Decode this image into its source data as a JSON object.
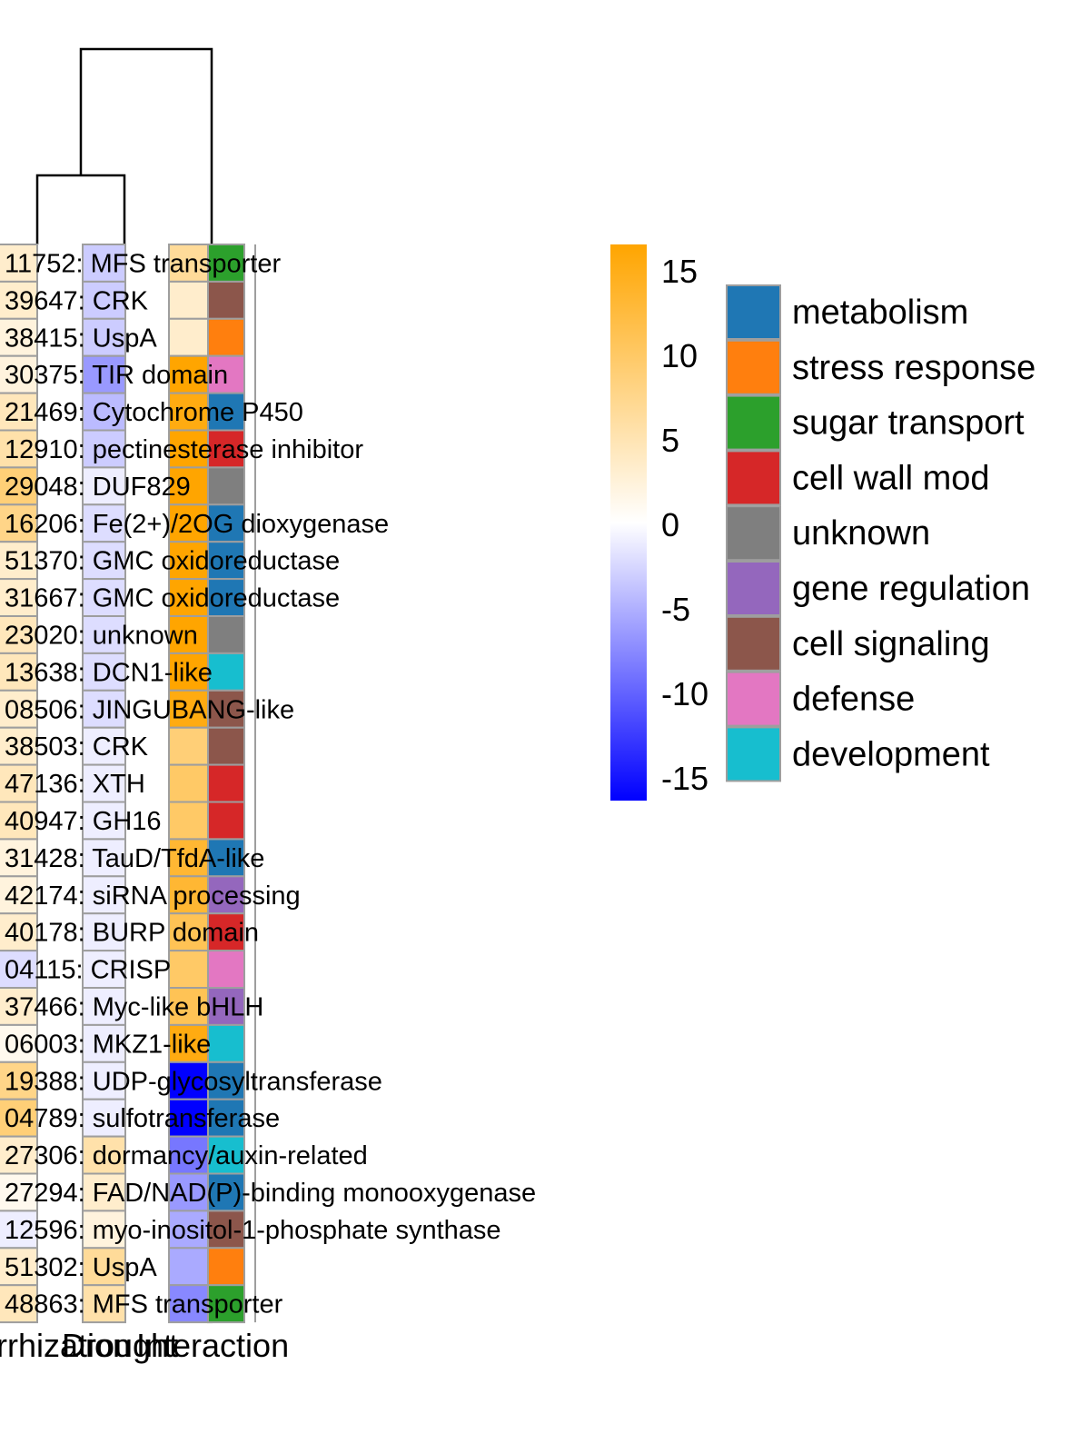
{
  "chart_data": {
    "type": "heatmap",
    "columns": [
      "Mycorrhization",
      "Drought",
      "Interaction"
    ],
    "rows": [
      {
        "id": "11752",
        "desc": ": MFS transporter",
        "values": [
          3,
          -3,
          6
        ],
        "category": "sugar transport"
      },
      {
        "id": "39647",
        "desc": ": CRK",
        "values": [
          3,
          -3,
          3
        ],
        "category": "cell signaling"
      },
      {
        "id": "38415",
        "desc": ": UspA",
        "values": [
          2,
          -3,
          3
        ],
        "category": "stress response"
      },
      {
        "id": "30375",
        "desc": ": TIR domain",
        "values": [
          2,
          -6,
          15
        ],
        "category": "defense"
      },
      {
        "id": "21469",
        "desc": ": Cytochrome P450",
        "values": [
          4,
          -4,
          14
        ],
        "category": "metabolism"
      },
      {
        "id": "12910",
        "desc": ": pectinesterase inhibitor",
        "values": [
          5,
          -3,
          15
        ],
        "category": "cell wall mod"
      },
      {
        "id": "29048",
        "desc": ": DUF829",
        "values": [
          8,
          -1,
          15
        ],
        "category": "unknown"
      },
      {
        "id": "16206",
        "desc": ": Fe(2+)/2OG dioxygenase",
        "values": [
          7,
          -2,
          15
        ],
        "category": "metabolism"
      },
      {
        "id": "51370",
        "desc": ": GMC oxidoreductase",
        "values": [
          3,
          -2,
          15
        ],
        "category": "metabolism"
      },
      {
        "id": "31667",
        "desc": ": GMC oxidoreductase",
        "values": [
          3,
          -2,
          15
        ],
        "category": "metabolism"
      },
      {
        "id": "23020",
        "desc": ": unknown",
        "values": [
          4,
          -2,
          15
        ],
        "category": "unknown"
      },
      {
        "id": "13638",
        "desc": ": DCN1-like",
        "values": [
          4,
          -2,
          15
        ],
        "category": "development"
      },
      {
        "id": "08506",
        "desc": ": JINGUBANG-like",
        "values": [
          3,
          -2,
          14
        ],
        "category": "cell signaling"
      },
      {
        "id": "38503",
        "desc": ": CRK",
        "values": [
          3,
          -1,
          8
        ],
        "category": "cell signaling"
      },
      {
        "id": "47136",
        "desc": ": XTH",
        "values": [
          4,
          -1,
          9
        ],
        "category": "cell wall mod"
      },
      {
        "id": "40947",
        "desc": ": GH16",
        "values": [
          4,
          -1,
          9
        ],
        "category": "cell wall mod"
      },
      {
        "id": "31428",
        "desc": ": TauD/TfdA-like",
        "values": [
          2,
          -1,
          12
        ],
        "category": "metabolism"
      },
      {
        "id": "42174",
        "desc": ": siRNA processing",
        "values": [
          2,
          -1,
          12
        ],
        "category": "gene regulation"
      },
      {
        "id": "40178",
        "desc": ": BURP domain",
        "values": [
          3,
          -1,
          10
        ],
        "category": "cell wall mod"
      },
      {
        "id": "04115",
        "desc": ": CRISP",
        "values": [
          -2,
          -1,
          9
        ],
        "category": "defense"
      },
      {
        "id": "37466",
        "desc": ": Myc-like bHLH",
        "values": [
          3,
          -1,
          10
        ],
        "category": "gene regulation"
      },
      {
        "id": "06003",
        "desc": ": MKZ1-like",
        "values": [
          1,
          -1,
          14
        ],
        "category": "development"
      },
      {
        "id": "19388",
        "desc": ": UDP-glycosyltransferase",
        "values": [
          7,
          -1,
          -15
        ],
        "category": "metabolism"
      },
      {
        "id": "04789",
        "desc": ": sulfotransferase",
        "values": [
          8,
          -1,
          -15
        ],
        "category": "metabolism"
      },
      {
        "id": "27306",
        "desc": ": dormancy/auxin-related",
        "values": [
          3,
          5,
          -8
        ],
        "category": "development"
      },
      {
        "id": "27294",
        "desc": ": FAD/NAD(P)-binding monooxygenase",
        "values": [
          1,
          3,
          -6
        ],
        "category": "metabolism"
      },
      {
        "id": "12596",
        "desc": ": myo-inositol-1-phosphate synthase",
        "values": [
          -1,
          2,
          -5
        ],
        "category": "cell signaling"
      },
      {
        "id": "51302",
        "desc": ": UspA",
        "values": [
          3,
          6,
          -5
        ],
        "category": "stress response"
      },
      {
        "id": "48863",
        "desc": ": MFS transporter",
        "values": [
          4,
          5,
          -7
        ],
        "category": "sugar transport"
      }
    ],
    "color_scale": {
      "min": -15,
      "max": 15,
      "low_color": "#0000ff",
      "mid_color": "#ffffff",
      "high_color": "#ffa500"
    },
    "color_ticks": [
      "15",
      "10",
      "5",
      "0",
      "-5",
      "-10",
      "-15"
    ],
    "categories": [
      {
        "name": "metabolism",
        "color": "#1f77b4"
      },
      {
        "name": "stress response",
        "color": "#ff7f0e"
      },
      {
        "name": "sugar transport",
        "color": "#2ca02c"
      },
      {
        "name": "cell wall mod",
        "color": "#d62728"
      },
      {
        "name": "unknown",
        "color": "#7f7f7f"
      },
      {
        "name": "gene regulation",
        "color": "#9467bd"
      },
      {
        "name": "cell signaling",
        "color": "#8c564b"
      },
      {
        "name": "defense",
        "color": "#e377c2"
      },
      {
        "name": "development",
        "color": "#17becf"
      }
    ],
    "column_labels_visible": [
      "rrhization",
      "Drought",
      "Interaction"
    ],
    "dendrogram": "columns Mycorrhization and Drought cluster first, then join Interaction"
  }
}
